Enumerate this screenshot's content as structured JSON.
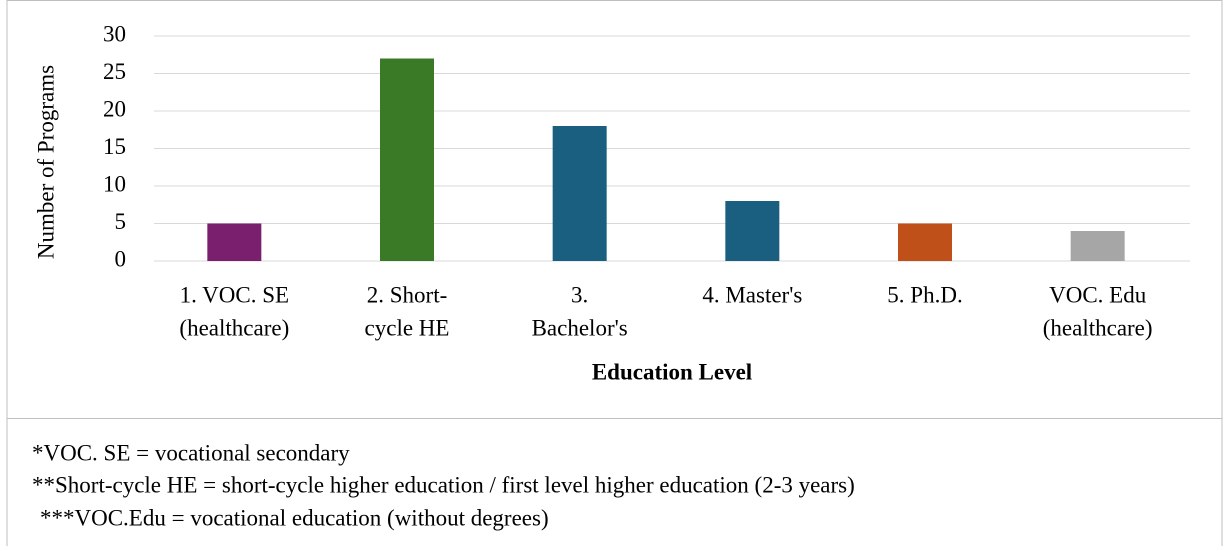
{
  "chart_data": {
    "type": "bar",
    "y_axis_label": "Number of Programs",
    "x_axis_label": "Education Level",
    "categories": [
      [
        "1. VOC. SE",
        "(healthcare)"
      ],
      [
        "2. Short-",
        "cycle  HE"
      ],
      [
        "3.",
        "Bachelor's"
      ],
      [
        "4. Master's"
      ],
      [
        "5. Ph.D."
      ],
      [
        "VOC. Edu",
        "(healthcare)"
      ]
    ],
    "values": [
      5,
      27,
      18,
      8,
      5,
      4
    ],
    "colors": [
      "#7a1f6e",
      "#3a7a26",
      "#1a5e80",
      "#1a5e80",
      "#c0501a",
      "#a6a6a6"
    ],
    "ylim": [
      0,
      30
    ],
    "yticks": [
      0,
      5,
      10,
      15,
      20,
      25,
      30
    ],
    "grid": true
  },
  "notes": [
    "*VOC. SE = vocational secondary",
    "**Short-cycle HE = short-cycle higher education / first level higher education (2-3 years)",
    "***VOC.Edu = vocational education (without degrees)"
  ]
}
